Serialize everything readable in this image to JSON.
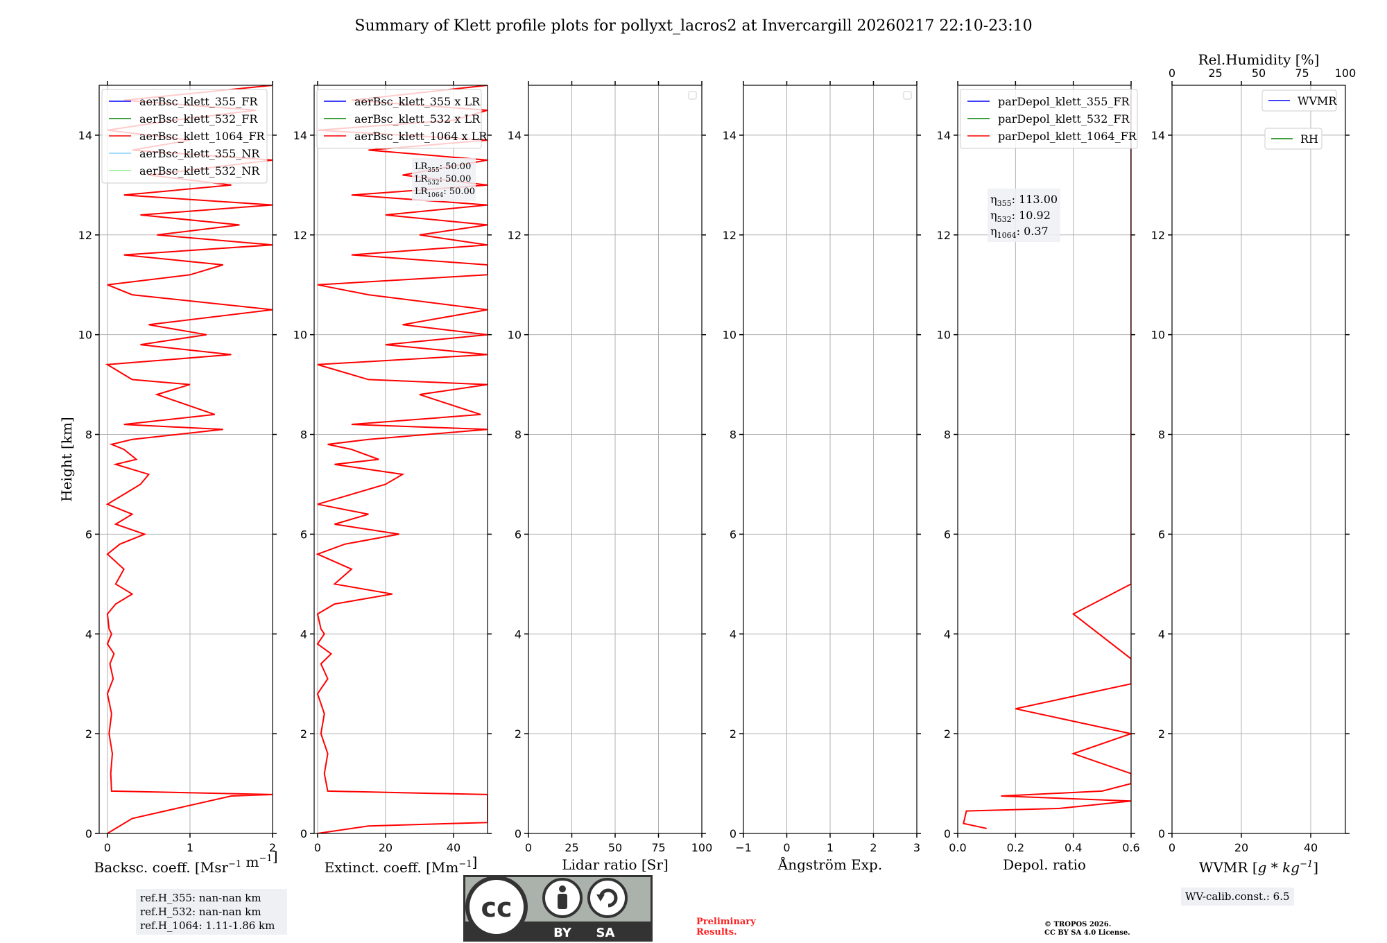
{
  "title": "Summary of Klett profile plots for pollyxt_lacros2 at Invercargill 20260217 22:10-23:10",
  "chart_data": [
    {
      "type": "line",
      "id": "backscatter",
      "xlabel": "Backsc. coeff. [Msr$^{-1}$ m$^{-1}$]",
      "xlabel_display": "Backsc. coeff. [Msr⁻¹ m⁻¹]",
      "ylabel": "Height [km]",
      "xlim": [
        -0.1,
        2
      ],
      "ylim": [
        0,
        15
      ],
      "xticks": [
        0,
        1,
        2
      ],
      "yticks": [
        0,
        2,
        4,
        6,
        8,
        10,
        12,
        14
      ],
      "grid": true,
      "legend_position": "top-left",
      "legend": [
        {
          "label": "aerBsc_klett_355_FR",
          "color": "#0000ff"
        },
        {
          "label": "aerBsc_klett_532_FR",
          "color": "#008000"
        },
        {
          "label": "aerBsc_klett_1064_FR",
          "color": "#ff0000"
        },
        {
          "label": "aerBsc_klett_355_NR",
          "color": "#87cefa"
        },
        {
          "label": "aerBsc_klett_532_NR",
          "color": "#90ee90"
        }
      ],
      "series": [
        {
          "name": "aerBsc_klett_1064_FR",
          "color": "#ff0000",
          "x": [
            0.0,
            0.3,
            1.5,
            2.0,
            0.05,
            0.04,
            0.06,
            0.02,
            0.05,
            0.0,
            0.07,
            0.03,
            0.08,
            0.0,
            0.05,
            0.02,
            0.0,
            0.1,
            0.3,
            0.1,
            0.2,
            0.0,
            0.15,
            0.45,
            0.1,
            0.3,
            0.0,
            0.2,
            0.4,
            0.5,
            0.1,
            0.35,
            0.2,
            0.05,
            0.3,
            1.4,
            0.2,
            1.3,
            0.6,
            1.0,
            0.3,
            0.1,
            0.0,
            1.5,
            0.4,
            1.2,
            0.5,
            2.0,
            0.3,
            0.0,
            1.0,
            1.4,
            0.2,
            2.0,
            0.6,
            1.6,
            0.4,
            2.0,
            0.2,
            1.5,
            0.5,
            2.0,
            0.3,
            1.0,
            0.0,
            0.8,
            1.8,
            0.2,
            2.0
          ],
          "y": [
            0.0,
            0.3,
            0.75,
            0.78,
            0.85,
            1.2,
            1.6,
            2.0,
            2.4,
            2.8,
            3.1,
            3.4,
            3.6,
            3.8,
            4.0,
            4.1,
            4.4,
            4.6,
            4.8,
            5.0,
            5.3,
            5.6,
            5.8,
            6.0,
            6.2,
            6.4,
            6.6,
            6.8,
            7.0,
            7.2,
            7.4,
            7.5,
            7.7,
            7.8,
            7.9,
            8.1,
            8.2,
            8.4,
            8.8,
            9.0,
            9.1,
            9.3,
            9.4,
            9.6,
            9.8,
            10.0,
            10.2,
            10.5,
            10.8,
            11.0,
            11.2,
            11.4,
            11.6,
            11.8,
            12.0,
            12.2,
            12.4,
            12.6,
            12.8,
            13.0,
            13.2,
            13.5,
            13.7,
            13.9,
            14.1,
            14.3,
            14.5,
            14.7,
            15.0
          ]
        }
      ]
    },
    {
      "type": "line",
      "id": "extinction",
      "xlabel": "Extinct. coeff. [Mm$^{-1}$]",
      "xlabel_display": "Extinct. coeff. [Mm⁻¹]",
      "xlim": [
        -1,
        50
      ],
      "ylim": [
        0,
        15
      ],
      "xticks": [
        0,
        20,
        40
      ],
      "yticks": [
        0,
        2,
        4,
        6,
        8,
        10,
        12,
        14
      ],
      "grid": true,
      "legend_position": "top-left",
      "legend": [
        {
          "label": "aerBsc_klett_355 x LR",
          "color": "#0000ff"
        },
        {
          "label": "aerBsc_klett_532 x LR",
          "color": "#008000"
        },
        {
          "label": "aerBsc_klett_1064 x LR",
          "color": "#ff0000"
        }
      ],
      "annotations": [
        "LR355: 50.00",
        "LR532: 50.00",
        "LR1064: 50.00"
      ],
      "annotations_display": [
        {
          "main": "LR",
          "sub": "355",
          "rest": ": 50.00"
        },
        {
          "main": "LR",
          "sub": "532",
          "rest": ": 50.00"
        },
        {
          "main": "LR",
          "sub": "1064",
          "rest": ": 50.00"
        }
      ],
      "series": [
        {
          "name": "aerBsc_klett_1064 x LR",
          "color": "#ff0000",
          "x": [
            0.0,
            15,
            50,
            50,
            3,
            2,
            3,
            1,
            2,
            0,
            3,
            1,
            4,
            0,
            2,
            1,
            0,
            5,
            22,
            5,
            10,
            0,
            8,
            24,
            5,
            15,
            0,
            10,
            20,
            25,
            5,
            18,
            10,
            3,
            15,
            50,
            10,
            48,
            30,
            50,
            15,
            5,
            0,
            50,
            20,
            50,
            25,
            50,
            15,
            0,
            50,
            50,
            10,
            50,
            30,
            50,
            20,
            50,
            10,
            50,
            25,
            50,
            15,
            50,
            0,
            40,
            50,
            10,
            50
          ],
          "y": [
            0.0,
            0.15,
            0.22,
            0.78,
            0.85,
            1.2,
            1.6,
            2.0,
            2.4,
            2.8,
            3.1,
            3.4,
            3.6,
            3.8,
            4.0,
            4.1,
            4.4,
            4.6,
            4.8,
            5.0,
            5.3,
            5.6,
            5.8,
            6.0,
            6.2,
            6.4,
            6.6,
            6.8,
            7.0,
            7.2,
            7.4,
            7.5,
            7.7,
            7.8,
            7.9,
            8.1,
            8.2,
            8.4,
            8.8,
            9.0,
            9.1,
            9.3,
            9.4,
            9.6,
            9.8,
            10.0,
            10.2,
            10.5,
            10.8,
            11.0,
            11.2,
            11.4,
            11.6,
            11.8,
            12.0,
            12.2,
            12.4,
            12.6,
            12.8,
            13.0,
            13.2,
            13.5,
            13.7,
            13.9,
            14.1,
            14.3,
            14.5,
            14.7,
            15.0
          ]
        }
      ]
    },
    {
      "type": "line",
      "id": "lidar-ratio",
      "xlabel": "Lidar ratio [Sr]",
      "xlim": [
        0,
        100
      ],
      "ylim": [
        0,
        15
      ],
      "xticks": [
        0,
        25,
        50,
        75,
        100
      ],
      "yticks": [
        0,
        2,
        4,
        6,
        8,
        10,
        12,
        14
      ],
      "grid": true,
      "legend_position": "top-right",
      "series": []
    },
    {
      "type": "line",
      "id": "angstrom",
      "xlabel": "Ångström Exp.",
      "xlim": [
        -1,
        3
      ],
      "ylim": [
        0,
        15
      ],
      "xticks": [
        -1,
        0,
        1,
        2,
        3
      ],
      "yticks": [
        0,
        2,
        4,
        6,
        8,
        10,
        12,
        14
      ],
      "grid": true,
      "legend_position": "top-right",
      "series": []
    },
    {
      "type": "line",
      "id": "depol",
      "xlabel": "Depol. ratio",
      "xlim": [
        0,
        0.6
      ],
      "ylim": [
        0,
        15
      ],
      "xticks": [
        0.0,
        0.2,
        0.4,
        0.6
      ],
      "xtick_labels": [
        "0.0",
        "0.2",
        "0.4",
        "0.6"
      ],
      "yticks": [
        0,
        2,
        4,
        6,
        8,
        10,
        12,
        14
      ],
      "grid": true,
      "legend_position": "top-left",
      "legend": [
        {
          "label": "parDepol_klett_355_FR",
          "color": "#0000ff"
        },
        {
          "label": "parDepol_klett_532_FR",
          "color": "#008000"
        },
        {
          "label": "parDepol_klett_1064_FR",
          "color": "#ff0000"
        }
      ],
      "annotations": [
        "η355: 113.00",
        "η532: 10.92",
        "η1064: 0.37"
      ],
      "annotations_display": [
        {
          "main": "η",
          "sub": "355",
          "rest": ": 113.00"
        },
        {
          "main": "η",
          "sub": "532",
          "rest": ": 10.92"
        },
        {
          "main": "η",
          "sub": "1064",
          "rest": ": 0.37"
        }
      ],
      "series": [
        {
          "name": "parDepol_klett_1064_FR",
          "color": "#ff0000",
          "x": [
            0.1,
            0.02,
            0.03,
            0.35,
            0.6,
            0.15,
            0.5,
            0.6,
            0.6,
            0.4,
            0.6,
            0.2,
            0.6,
            0.6,
            0.4,
            0.6,
            0.6,
            0.6,
            0.6,
            0.6,
            0.6,
            0.6,
            0.6,
            0.6,
            0.6,
            0.6
          ],
          "y": [
            0.1,
            0.2,
            0.45,
            0.5,
            0.65,
            0.75,
            0.85,
            1.0,
            1.2,
            1.6,
            2.0,
            2.5,
            3.0,
            3.5,
            4.4,
            5.0,
            5.8,
            6.5,
            7.0,
            8.2,
            9.0,
            10.2,
            11.5,
            12.4,
            13.5,
            14.8
          ]
        }
      ]
    },
    {
      "type": "line",
      "id": "wvmr",
      "xlabel": "WVMR [$g*kg^{-1}$]",
      "xlabel_display_main": "WVMR [",
      "xlabel_display_math": "g * kg",
      "xlabel_display_sup": "−1",
      "xlabel_display_end": "]",
      "xlim": [
        0,
        50
      ],
      "ylim": [
        0,
        15
      ],
      "xticks": [
        0,
        20,
        40
      ],
      "yticks": [
        0,
        2,
        4,
        6,
        8,
        10,
        12,
        14
      ],
      "grid": true,
      "secondary_xlabel": "Rel.Humidity [%]",
      "secondary_xlim": [
        0,
        100
      ],
      "secondary_xticks": [
        0,
        25,
        50,
        75,
        100
      ],
      "legend": [
        {
          "label": "WVMR",
          "color": "#0000ff"
        },
        {
          "label": "RH",
          "color": "#008000"
        }
      ],
      "series": []
    }
  ],
  "ref_heights": [
    "ref.H_355: nan-nan km",
    "ref.H_532: nan-nan km",
    "ref.H_1064: 1.11-1.86 km"
  ],
  "wv_calib": "WV-calib.const.: 6.5",
  "preliminary": [
    "Preliminary",
    "Results."
  ],
  "copyright": [
    "© TROPOS 2026.",
    "CC BY SA 4.0 License."
  ],
  "license_badge": {
    "cc": "cc",
    "by": "BY",
    "sa": "SA"
  }
}
